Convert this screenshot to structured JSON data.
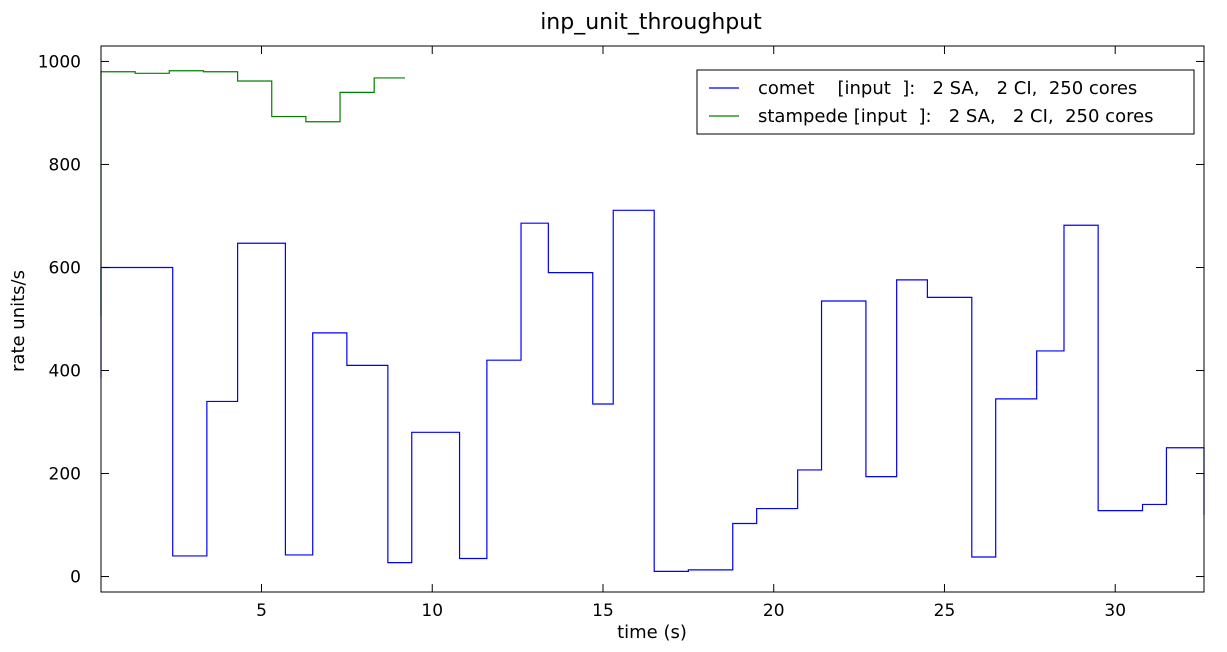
{
  "chart_data": {
    "type": "line",
    "step": true,
    "title": "inp_unit_throughput",
    "xlabel": "time (s)",
    "ylabel": "rate units/s",
    "xlim": [
      0.3,
      32.6
    ],
    "ylim": [
      -30,
      1030
    ],
    "xticks": [
      5,
      10,
      15,
      20,
      25,
      30
    ],
    "yticks": [
      0,
      200,
      400,
      600,
      800,
      1000
    ],
    "grid": false,
    "legend_position": "top-right",
    "series": [
      {
        "name": "comet    [input  ]:   2 SA,   2 CI,  250 cores",
        "color": "#0000ff",
        "x": [
          0.3,
          0.3,
          1.3,
          2.4,
          3.4,
          4.3,
          5.7,
          6.5,
          7.5,
          8.7,
          9.4,
          10.8,
          11.6,
          12.6,
          13.4,
          14.7,
          15.3,
          16.5,
          17.5,
          18.8,
          19.5,
          20.7,
          21.4,
          22.7,
          23.6,
          24.5,
          25.8,
          26.5,
          27.7,
          28.5,
          29.5,
          30.8,
          31.5,
          32.6
        ],
        "y": [
          385,
          600,
          600,
          40,
          340,
          647,
          42,
          473,
          410,
          27,
          280,
          35,
          420,
          686,
          590,
          335,
          711,
          10,
          13,
          103,
          132,
          207,
          535,
          194,
          576,
          542,
          38,
          345,
          438,
          682,
          128,
          140,
          250,
          120
        ]
      },
      {
        "name": "stampede [input  ]:   2 SA,   2 CI,  250 cores",
        "color": "#008000",
        "x": [
          0.3,
          0.3,
          0.3,
          1.3,
          2.3,
          3.3,
          4.3,
          5.3,
          6.3,
          7.3,
          8.3,
          9.2
        ],
        "y": [
          505,
          980,
          980,
          977,
          982,
          980,
          962,
          893,
          883,
          940,
          968,
          968
        ]
      }
    ]
  }
}
